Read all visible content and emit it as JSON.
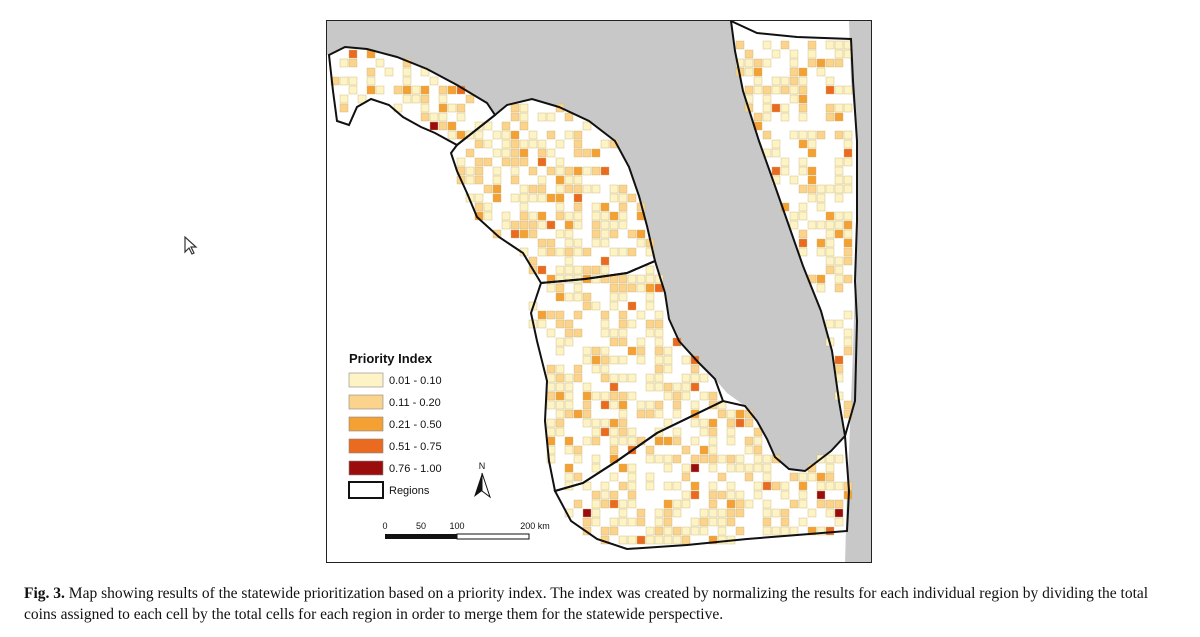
{
  "map": {
    "legend": {
      "title": "Priority Index",
      "classes": [
        {
          "label": "0.01 - 0.10",
          "color": "#fdf3c4"
        },
        {
          "label": "0.11 - 0.20",
          "color": "#fbd38b"
        },
        {
          "label": "0.21 - 0.50",
          "color": "#f5a033"
        },
        {
          "label": "0.51 - 0.75",
          "color": "#ea6a1f"
        },
        {
          "label": "0.76 - 1.00",
          "color": "#9b0d0d"
        }
      ],
      "regions_label": "Regions"
    },
    "north_label": "N",
    "scale": {
      "ticks": [
        "0",
        "50",
        "100",
        "200 km"
      ]
    },
    "water_color": "#c8c8c8",
    "land_color": "#ffffff"
  },
  "caption": {
    "label": "Fig. 3.",
    "text": "Map showing results of the statewide prioritization based on a priority index. The index was created by normalizing the results for each individual region by dividing the total coins assigned to each cell by the total cells for each region in order to merge them for the statewide perspective."
  }
}
